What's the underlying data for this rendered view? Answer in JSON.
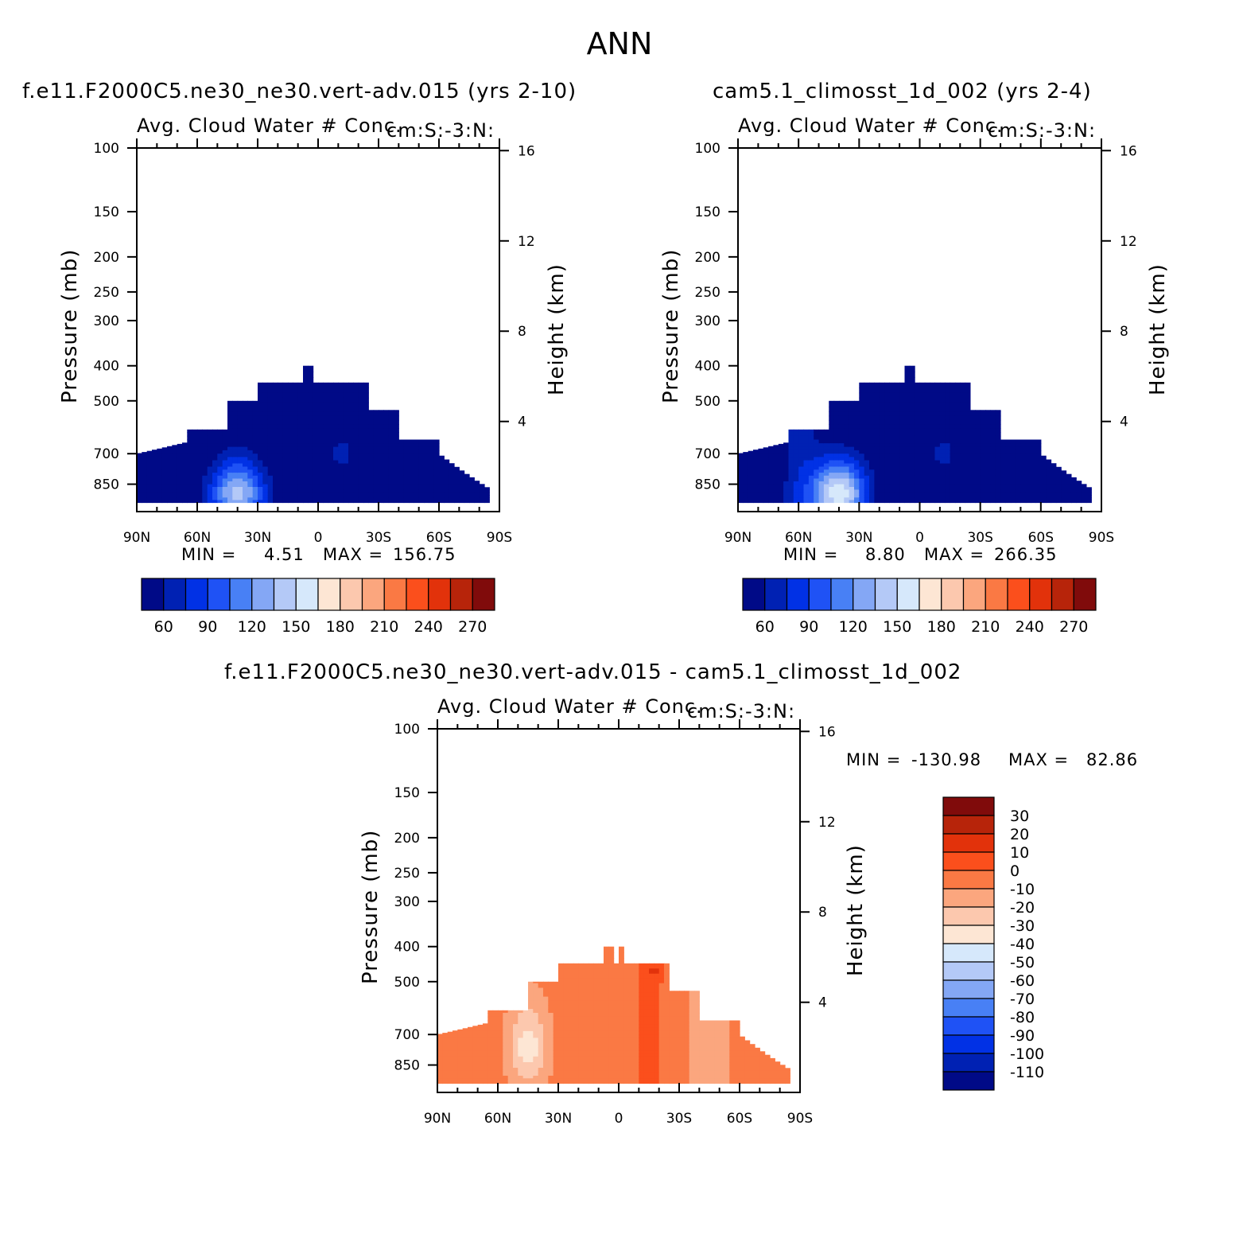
{
  "figure_title": "ANN",
  "colors": {
    "abs_levels": [
      "#000a87",
      "#0021b3",
      "#0131e5",
      "#1f52f5",
      "#4880f5",
      "#84a7f5",
      "#b4c9f7",
      "#d6e8fb",
      "#fde6d4",
      "#fcc8ae",
      "#fba67e",
      "#fa7944",
      "#fb4f1c",
      "#e2320b",
      "#b7240a",
      "#800b0b"
    ],
    "diff_levels": [
      "#000a87",
      "#0021b3",
      "#0131e5",
      "#1f52f5",
      "#4880f5",
      "#84a7f5",
      "#b4c9f7",
      "#d6e8fb",
      "#fde6d4",
      "#fcc8ae",
      "#fba67e",
      "#fa7944",
      "#fb4f1c",
      "#e2320b",
      "#b7240a",
      "#800b0b"
    ]
  },
  "chart_data": [
    {
      "id": "panel-test",
      "type": "heatmap",
      "title": "f.e11.F2000C5.ne30_ne30.vert-adv.015 (yrs 2-10)",
      "variable": "Avg. Cloud Water # Conc.",
      "units": "cm:S:-3:N:",
      "xlabel": "",
      "ylabel": "Pressure (mb)",
      "y2label": "Height (km)",
      "x_ticks": [
        "90N",
        "60N",
        "30N",
        "0",
        "30S",
        "60S",
        "90S"
      ],
      "x_range": [
        90,
        -90
      ],
      "y_ticks": [
        100,
        150,
        200,
        250,
        300,
        400,
        500,
        700,
        850
      ],
      "y_range": [
        100,
        1000
      ],
      "y2_ticks": [
        16,
        12,
        8,
        4
      ],
      "min_label": "MIN =",
      "min_value": "4.51",
      "max_label": "MAX =",
      "max_value": "156.75",
      "colorbar_labels": [
        "60",
        "90",
        "120",
        "150",
        "180",
        "210",
        "240",
        "270"
      ]
    },
    {
      "id": "panel-control",
      "type": "heatmap",
      "title": "cam5.1_climosst_1d_002 (yrs 2-4)",
      "variable": "Avg. Cloud Water # Conc.",
      "units": "cm:S:-3:N:",
      "xlabel": "",
      "ylabel": "Pressure (mb)",
      "y2label": "Height (km)",
      "x_ticks": [
        "90N",
        "60N",
        "30N",
        "0",
        "30S",
        "60S",
        "90S"
      ],
      "x_range": [
        90,
        -90
      ],
      "y_ticks": [
        100,
        150,
        200,
        250,
        300,
        400,
        500,
        700,
        850
      ],
      "y_range": [
        100,
        1000
      ],
      "y2_ticks": [
        16,
        12,
        8,
        4
      ],
      "min_label": "MIN =",
      "min_value": "8.80",
      "max_label": "MAX =",
      "max_value": "266.35",
      "colorbar_labels": [
        "60",
        "90",
        "120",
        "150",
        "180",
        "210",
        "240",
        "270"
      ]
    },
    {
      "id": "panel-diff",
      "type": "heatmap",
      "title": "f.e11.F2000C5.ne30_ne30.vert-adv.015 - cam5.1_climosst_1d_002",
      "variable": "Avg. Cloud Water # Conc.",
      "units": "cm:S:-3:N:",
      "xlabel": "",
      "ylabel": "Pressure (mb)",
      "y2label": "Height (km)",
      "x_ticks": [
        "90N",
        "60N",
        "30N",
        "0",
        "30S",
        "60S",
        "90S"
      ],
      "x_range": [
        90,
        -90
      ],
      "y_ticks": [
        100,
        150,
        200,
        250,
        300,
        400,
        500,
        700,
        850
      ],
      "y_range": [
        100,
        1000
      ],
      "y2_ticks": [
        16,
        12,
        8,
        4
      ],
      "min_label": "MIN =",
      "min_value": "-130.98",
      "max_label": "MAX =",
      "max_value": "82.86",
      "colorbar_labels": [
        "30",
        "20",
        "10",
        "0",
        "-10",
        "-20",
        "-30",
        "-40",
        "-50",
        "-60",
        "-70",
        "-80",
        "-90",
        "-100",
        "-110"
      ]
    }
  ]
}
